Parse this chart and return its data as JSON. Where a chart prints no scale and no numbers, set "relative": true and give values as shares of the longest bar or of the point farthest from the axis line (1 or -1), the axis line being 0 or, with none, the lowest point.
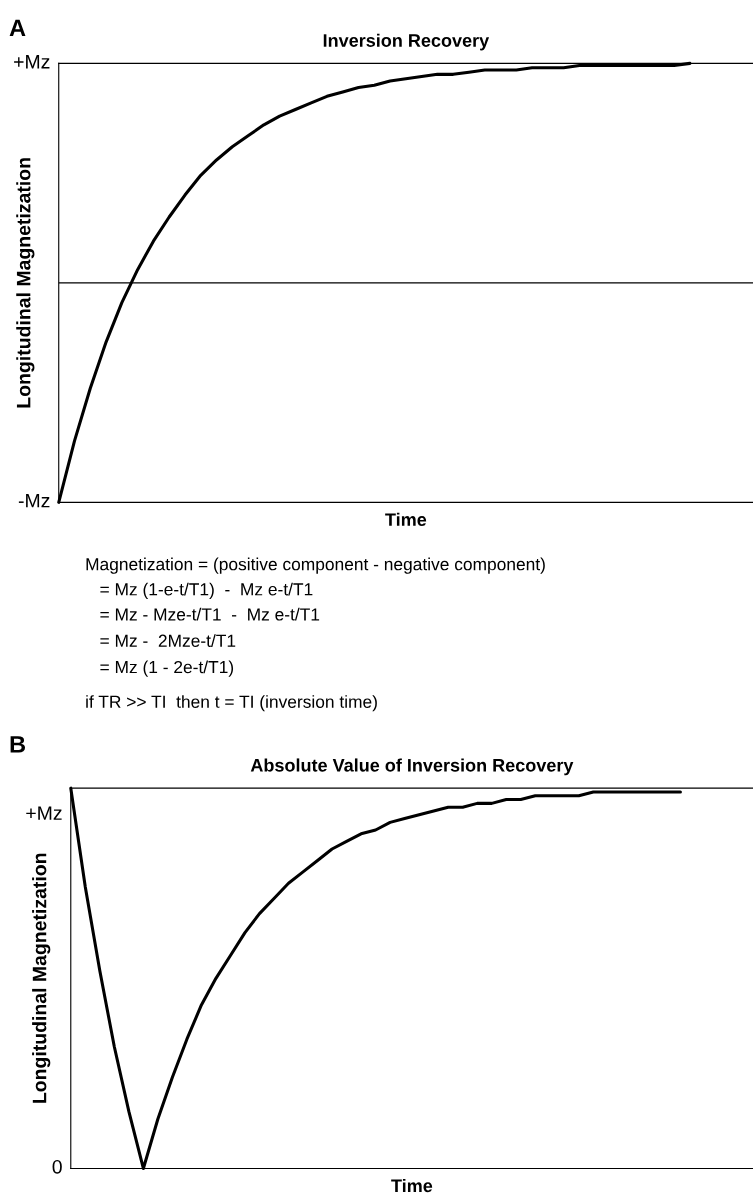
{
  "chart_data": [
    {
      "type": "line",
      "relative": true,
      "title": "Inversion Recovery",
      "xlabel": "Time",
      "ylabel": "Longitudinal Magnetization",
      "categories": [
        null,
        null,
        null,
        null,
        null,
        null,
        null,
        null,
        null,
        null,
        null,
        null,
        null,
        null,
        null,
        null,
        null,
        null,
        null,
        null,
        null,
        null,
        null,
        null,
        null,
        null,
        null,
        null,
        null,
        null,
        null,
        null,
        null,
        null,
        null,
        null,
        null,
        null,
        null,
        null,
        null,
        null,
        null,
        null,
        null
      ],
      "series": [
        {
          "color": "#000000",
          "values": [
            -1,
            -0.72,
            -0.48,
            -0.27,
            -0.09,
            0.06,
            0.19,
            0.3,
            0.4,
            0.49,
            0.56,
            0.62,
            0.67,
            0.72,
            0.76,
            0.79,
            0.82,
            0.85,
            0.87,
            0.89,
            0.9,
            0.92,
            0.93,
            0.94,
            0.95,
            0.95,
            0.96,
            0.97,
            0.97,
            0.97,
            0.98,
            0.98,
            0.98,
            0.99,
            0.99,
            0.99,
            0.99,
            0.99,
            0.99,
            0.99,
            1.0,
            null,
            null,
            null,
            null
          ]
        }
      ],
      "ref_lines": [
        {
          "axis": "y",
          "value": 0,
          "color": "#000000"
        }
      ],
      "annotations": [
        "A",
        "+Mz",
        "-Mz",
        "Magnetization = (positive component - negative component)",
        "   = Mz (1-e-t/T1)  -  Mz e-t/T1",
        "   = Mz - Mze-t/T1  -  Mz e-t/T1",
        "   = Mz -  2Mze-t/T1",
        "   = Mz (1 - 2e-t/T1)",
        "if TR >> TI  then t = TI (inversion time)"
      ]
    },
    {
      "type": "line",
      "relative": true,
      "title": "Absolute Value of Inversion Recovery",
      "xlabel": "Time",
      "ylabel": "Longitudinal Magnetization",
      "categories": [
        null,
        null,
        null,
        null,
        null,
        null,
        null,
        null,
        null,
        null,
        null,
        null,
        null,
        null,
        null,
        null,
        null,
        null,
        null,
        null,
        null,
        null,
        null,
        null,
        null,
        null,
        null,
        null,
        null,
        null,
        null,
        null,
        null,
        null,
        null,
        null,
        null,
        null,
        null,
        null,
        null,
        null,
        null,
        null,
        null,
        null,
        null,
        null
      ],
      "series": [
        {
          "color": "#000000",
          "values": [
            1,
            0.74,
            0.52,
            0.32,
            0.15,
            0,
            0.13,
            0.24,
            0.34,
            0.43,
            0.5,
            0.56,
            0.62,
            0.67,
            0.71,
            0.75,
            0.78,
            0.81,
            0.84,
            0.86,
            0.88,
            0.89,
            0.91,
            0.92,
            0.93,
            0.94,
            0.95,
            0.95,
            0.96,
            0.96,
            0.97,
            0.97,
            0.98,
            0.98,
            0.98,
            0.98,
            0.99,
            0.99,
            0.99,
            0.99,
            0.99,
            0.99,
            0.99,
            null,
            null,
            null,
            null,
            null
          ]
        }
      ],
      "annotations": [
        "B",
        "+Mz",
        "0"
      ]
    }
  ]
}
